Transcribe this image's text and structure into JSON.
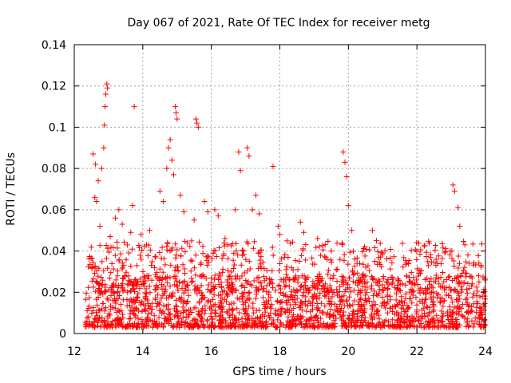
{
  "chart_data": {
    "type": "scatter",
    "title": "Day 067 of 2021, Rate Of TEC Index for receiver metg",
    "xlabel": "GPS time / hours",
    "ylabel": "ROTI / TECUs",
    "xlim": [
      12,
      24
    ],
    "ylim": [
      0,
      0.14
    ],
    "xticks": [
      12,
      14,
      16,
      18,
      20,
      22,
      24
    ],
    "yticks": [
      0,
      0.02,
      0.04,
      0.06,
      0.08,
      0.1,
      0.12,
      0.14
    ],
    "ytick_labels": [
      "0",
      "0.02",
      "0.04",
      "0.06",
      "0.08",
      "0.1",
      "0.12",
      "0.14"
    ],
    "grid": true,
    "marker": "+",
    "color": "#ff0000",
    "series": [
      {
        "name": "ROTI",
        "points": [
          [
            12.55,
            0.087
          ],
          [
            12.62,
            0.082
          ],
          [
            12.7,
            0.074
          ],
          [
            12.8,
            0.08
          ],
          [
            12.86,
            0.09
          ],
          [
            12.88,
            0.101
          ],
          [
            12.9,
            0.11
          ],
          [
            12.92,
            0.116
          ],
          [
            12.95,
            0.121
          ],
          [
            12.97,
            0.119
          ],
          [
            12.6,
            0.066
          ],
          [
            12.65,
            0.064
          ],
          [
            12.75,
            0.052
          ],
          [
            13.05,
            0.047
          ],
          [
            13.2,
            0.056
          ],
          [
            13.3,
            0.06
          ],
          [
            13.4,
            0.053
          ],
          [
            13.55,
            0.043
          ],
          [
            13.65,
            0.049
          ],
          [
            13.7,
            0.062
          ],
          [
            13.75,
            0.11
          ],
          [
            13.95,
            0.048
          ],
          [
            14.2,
            0.05
          ],
          [
            14.5,
            0.069
          ],
          [
            14.6,
            0.064
          ],
          [
            14.7,
            0.08
          ],
          [
            14.75,
            0.09
          ],
          [
            14.8,
            0.094
          ],
          [
            14.85,
            0.084
          ],
          [
            14.9,
            0.077
          ],
          [
            14.95,
            0.11
          ],
          [
            14.97,
            0.107
          ],
          [
            15.0,
            0.104
          ],
          [
            15.1,
            0.067
          ],
          [
            15.2,
            0.059
          ],
          [
            15.3,
            0.044
          ],
          [
            15.5,
            0.055
          ],
          [
            15.55,
            0.104
          ],
          [
            15.58,
            0.102
          ],
          [
            15.62,
            0.1
          ],
          [
            15.8,
            0.064
          ],
          [
            15.9,
            0.059
          ],
          [
            16.1,
            0.06
          ],
          [
            16.2,
            0.057
          ],
          [
            16.4,
            0.046
          ],
          [
            16.7,
            0.06
          ],
          [
            16.8,
            0.088
          ],
          [
            16.85,
            0.079
          ],
          [
            17.05,
            0.09
          ],
          [
            17.1,
            0.086
          ],
          [
            17.2,
            0.06
          ],
          [
            17.3,
            0.067
          ],
          [
            17.4,
            0.058
          ],
          [
            17.8,
            0.081
          ],
          [
            17.95,
            0.052
          ],
          [
            18.0,
            0.048
          ],
          [
            18.6,
            0.054
          ],
          [
            18.7,
            0.049
          ],
          [
            19.1,
            0.046
          ],
          [
            19.5,
            0.04
          ],
          [
            19.85,
            0.088
          ],
          [
            19.9,
            0.083
          ],
          [
            19.95,
            0.076
          ],
          [
            20.0,
            0.062
          ],
          [
            20.1,
            0.05
          ],
          [
            20.7,
            0.05
          ],
          [
            21.0,
            0.039
          ],
          [
            22.1,
            0.029
          ],
          [
            22.6,
            0.034
          ],
          [
            23.05,
            0.072
          ],
          [
            23.1,
            0.069
          ],
          [
            23.2,
            0.061
          ],
          [
            23.25,
            0.052
          ],
          [
            23.4,
            0.043
          ],
          [
            23.8,
            0.028
          ]
        ],
        "dense_band": {
          "x_from": 12.3,
          "x_to": 24.0,
          "y_from": 0.0,
          "y_to": 0.025,
          "count": 1700
        },
        "mid_band": {
          "x_from": 12.4,
          "x_to": 23.9,
          "y_from": 0.02,
          "y_to": 0.045,
          "count": 520
        }
      }
    ]
  }
}
